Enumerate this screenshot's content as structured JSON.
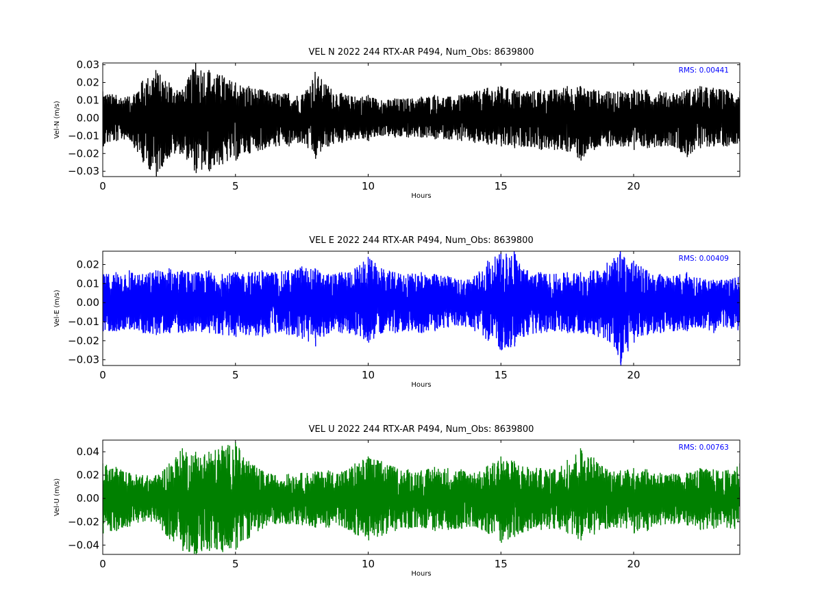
{
  "chart_data": [
    {
      "type": "line",
      "title": "VEL N 2022 244 RTX-AR  P494, Num_Obs: 8639800",
      "xlabel": "Hours",
      "ylabel": "Vel-N (m/s)",
      "xlim": [
        0,
        24
      ],
      "ylim": [
        -0.033,
        0.031
      ],
      "x_ticks": [
        0,
        5,
        10,
        15,
        20
      ],
      "y_ticks": [
        -0.03,
        -0.02,
        -0.01,
        0.0,
        0.01,
        0.02,
        0.03
      ],
      "y_tick_labels": [
        "−0.03",
        "−0.02",
        "−0.01",
        "0.00",
        "0.01",
        "0.02",
        "0.03"
      ],
      "color": "#000000",
      "rms_label": "RMS:  0.00441",
      "rms_color": "#0000ff",
      "series": [
        {
          "x": [
            0,
            0.5,
            1,
            1.5,
            2,
            2.5,
            3,
            3.5,
            4,
            4.5,
            5,
            5.5,
            6,
            6.5,
            7,
            7.5,
            8,
            8.5,
            9,
            9.5,
            10,
            10.5,
            11,
            11.5,
            12,
            12.5,
            13,
            13.5,
            14,
            14.5,
            15,
            15.5,
            16,
            16.5,
            17,
            17.5,
            18,
            18.5,
            19,
            19.5,
            20,
            20.5,
            21,
            21.5,
            22,
            22.5,
            23,
            23.5,
            24
          ],
          "upper": [
            0.015,
            0.013,
            0.012,
            0.021,
            0.027,
            0.02,
            0.016,
            0.031,
            0.027,
            0.024,
            0.02,
            0.018,
            0.016,
            0.014,
            0.014,
            0.013,
            0.026,
            0.018,
            0.014,
            0.012,
            0.013,
            0.01,
            0.011,
            0.011,
            0.012,
            0.013,
            0.012,
            0.013,
            0.015,
            0.017,
            0.018,
            0.016,
            0.015,
            0.016,
            0.016,
            0.018,
            0.018,
            0.016,
            0.015,
            0.015,
            0.016,
            0.016,
            0.015,
            0.014,
            0.016,
            0.018,
            0.017,
            0.016,
            0.015
          ],
          "lower": [
            -0.016,
            -0.013,
            -0.012,
            -0.025,
            -0.033,
            -0.022,
            -0.02,
            -0.031,
            -0.03,
            -0.026,
            -0.024,
            -0.02,
            -0.018,
            -0.016,
            -0.016,
            -0.014,
            -0.023,
            -0.016,
            -0.014,
            -0.012,
            -0.013,
            -0.01,
            -0.011,
            -0.011,
            -0.011,
            -0.012,
            -0.012,
            -0.013,
            -0.014,
            -0.015,
            -0.016,
            -0.017,
            -0.016,
            -0.018,
            -0.018,
            -0.019,
            -0.024,
            -0.018,
            -0.016,
            -0.016,
            -0.018,
            -0.017,
            -0.016,
            -0.016,
            -0.022,
            -0.017,
            -0.016,
            -0.016,
            -0.014
          ]
        }
      ]
    },
    {
      "type": "line",
      "title": "VEL E 2022 244 RTX-AR  P494, Num_Obs: 8639800",
      "xlabel": "Hours",
      "ylabel": "Vel-E (m/s)",
      "xlim": [
        0,
        24
      ],
      "ylim": [
        -0.033,
        0.027
      ],
      "x_ticks": [
        0,
        5,
        10,
        15,
        20
      ],
      "y_ticks": [
        -0.03,
        -0.02,
        -0.01,
        0.0,
        0.01,
        0.02
      ],
      "y_tick_labels": [
        "−0.03",
        "−0.02",
        "−0.01",
        "0.00",
        "0.01",
        "0.02"
      ],
      "color": "#0000ff",
      "rms_label": "RMS:  0.00409",
      "rms_color": "#0000ff",
      "series": [
        {
          "x": [
            0,
            0.5,
            1,
            1.5,
            2,
            2.5,
            3,
            3.5,
            4,
            4.5,
            5,
            5.5,
            6,
            6.5,
            7,
            7.5,
            8,
            8.5,
            9,
            9.5,
            10,
            10.5,
            11,
            11.5,
            12,
            12.5,
            13,
            13.5,
            14,
            14.5,
            15,
            15.5,
            16,
            16.5,
            17,
            17.5,
            18,
            18.5,
            19,
            19.5,
            20,
            20.5,
            21,
            21.5,
            22,
            22.5,
            23,
            23.5,
            24
          ],
          "upper": [
            0.015,
            0.016,
            0.017,
            0.015,
            0.017,
            0.018,
            0.017,
            0.016,
            0.017,
            0.015,
            0.016,
            0.016,
            0.017,
            0.016,
            0.017,
            0.019,
            0.018,
            0.015,
            0.016,
            0.018,
            0.024,
            0.018,
            0.016,
            0.015,
            0.016,
            0.015,
            0.014,
            0.012,
            0.014,
            0.022,
            0.026,
            0.027,
            0.017,
            0.016,
            0.015,
            0.016,
            0.016,
            0.017,
            0.021,
            0.027,
            0.022,
            0.017,
            0.015,
            0.014,
            0.016,
            0.013,
            0.012,
            0.012,
            0.014
          ],
          "lower": [
            -0.015,
            -0.015,
            -0.014,
            -0.016,
            -0.017,
            -0.016,
            -0.016,
            -0.015,
            -0.016,
            -0.017,
            -0.018,
            -0.017,
            -0.018,
            -0.016,
            -0.017,
            -0.019,
            -0.023,
            -0.016,
            -0.016,
            -0.017,
            -0.021,
            -0.016,
            -0.016,
            -0.015,
            -0.016,
            -0.015,
            -0.013,
            -0.012,
            -0.015,
            -0.02,
            -0.025,
            -0.023,
            -0.017,
            -0.016,
            -0.015,
            -0.016,
            -0.016,
            -0.017,
            -0.02,
            -0.033,
            -0.021,
            -0.017,
            -0.016,
            -0.015,
            -0.015,
            -0.013,
            -0.016,
            -0.013,
            -0.015
          ]
        }
      ]
    },
    {
      "type": "line",
      "title": "VEL U 2022 244 RTX-AR  P494, Num_Obs: 8639800",
      "xlabel": "Hours",
      "ylabel": "Vel-U (m/s)",
      "xlim": [
        0,
        24
      ],
      "ylim": [
        -0.048,
        0.05
      ],
      "x_ticks": [
        0,
        5,
        10,
        15,
        20
      ],
      "y_ticks": [
        -0.04,
        -0.02,
        0.0,
        0.02,
        0.04
      ],
      "y_tick_labels": [
        "−0.04",
        "−0.02",
        "0.00",
        "0.02",
        "0.04"
      ],
      "color": "#008000",
      "rms_label": "RMS:  0.00763",
      "rms_color": "#0000ff",
      "series": [
        {
          "x": [
            0,
            0.5,
            1,
            1.5,
            2,
            2.5,
            3,
            3.5,
            4,
            4.5,
            5,
            5.5,
            6,
            6.5,
            7,
            7.5,
            8,
            8.5,
            9,
            9.5,
            10,
            10.5,
            11,
            11.5,
            12,
            12.5,
            13,
            13.5,
            14,
            14.5,
            15,
            15.5,
            16,
            16.5,
            17,
            17.5,
            18,
            18.5,
            19,
            19.5,
            20,
            20.5,
            21,
            21.5,
            22,
            22.5,
            23,
            23.5,
            24
          ],
          "upper": [
            0.03,
            0.027,
            0.022,
            0.02,
            0.02,
            0.03,
            0.043,
            0.04,
            0.04,
            0.045,
            0.048,
            0.032,
            0.024,
            0.02,
            0.021,
            0.022,
            0.023,
            0.024,
            0.023,
            0.03,
            0.036,
            0.032,
            0.027,
            0.025,
            0.024,
            0.027,
            0.026,
            0.025,
            0.022,
            0.028,
            0.036,
            0.032,
            0.027,
            0.026,
            0.025,
            0.033,
            0.043,
            0.035,
            0.025,
            0.024,
            0.026,
            0.025,
            0.022,
            0.021,
            0.022,
            0.026,
            0.025,
            0.024,
            0.03
          ],
          "lower": [
            -0.03,
            -0.028,
            -0.024,
            -0.02,
            -0.02,
            -0.035,
            -0.045,
            -0.048,
            -0.045,
            -0.046,
            -0.044,
            -0.034,
            -0.026,
            -0.022,
            -0.022,
            -0.023,
            -0.025,
            -0.025,
            -0.024,
            -0.031,
            -0.036,
            -0.032,
            -0.028,
            -0.026,
            -0.025,
            -0.028,
            -0.027,
            -0.026,
            -0.024,
            -0.03,
            -0.038,
            -0.033,
            -0.028,
            -0.027,
            -0.026,
            -0.03,
            -0.036,
            -0.031,
            -0.026,
            -0.025,
            -0.03,
            -0.028,
            -0.023,
            -0.022,
            -0.023,
            -0.027,
            -0.026,
            -0.025,
            -0.028
          ]
        }
      ]
    }
  ]
}
